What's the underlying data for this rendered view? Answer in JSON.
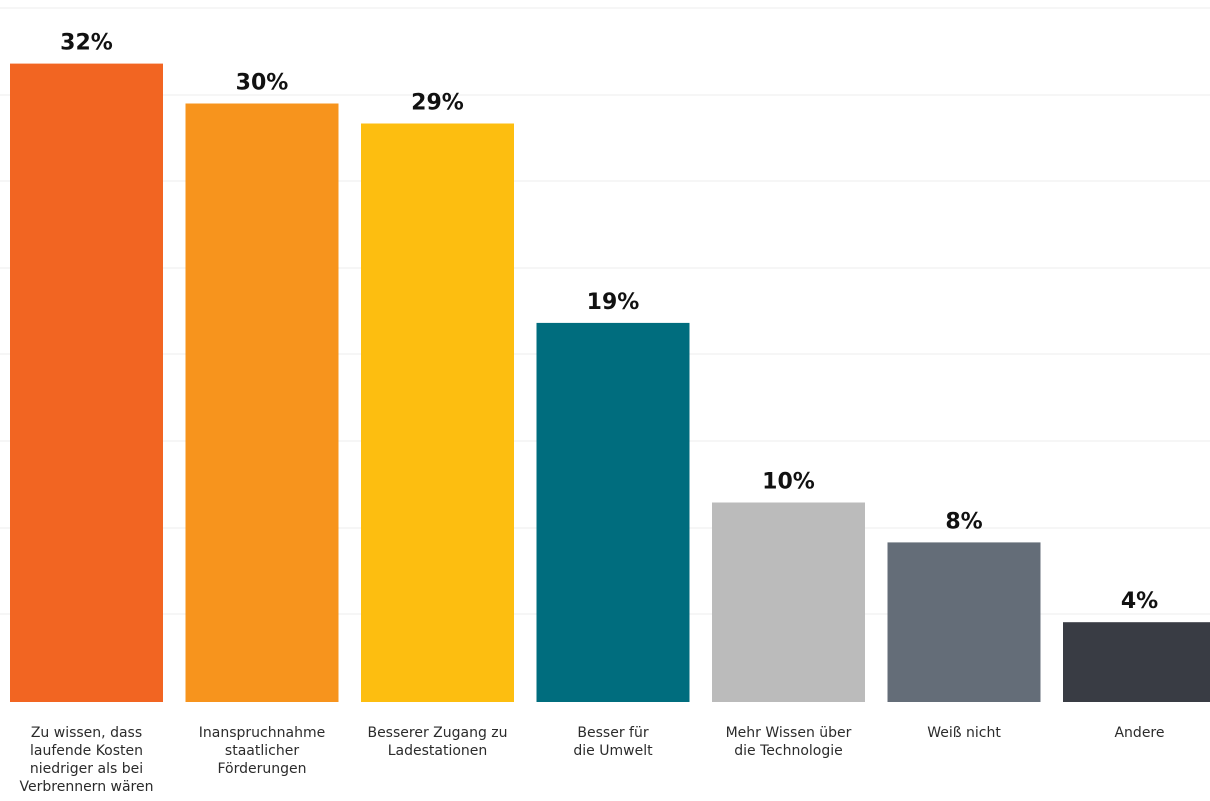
{
  "chart_data": {
    "type": "bar",
    "categories": [
      "Zu wissen, dass\nlaufende Kosten\nniedriger als bei\nVerbrennern wären",
      "Inanspruchnahme\nstaatlicher\nFörderungen",
      "Besserer Zugang zu\nLadestationen",
      "Besser für\ndie Umwelt",
      "Mehr Wissen über\ndie Technologie",
      "Weiß nicht",
      "Andere"
    ],
    "values": [
      32,
      30,
      29,
      19,
      10,
      8,
      4
    ],
    "value_labels": [
      "32%",
      "30%",
      "29%",
      "19%",
      "10%",
      "8%",
      "4%"
    ],
    "colors": [
      "#f26522",
      "#f7941d",
      "#fdbe10",
      "#006d7e",
      "#bbbbbb",
      "#646d78",
      "#393c44"
    ],
    "title": "",
    "xlabel": "",
    "ylabel": "",
    "ylim": [
      0,
      36
    ],
    "grid": true
  }
}
